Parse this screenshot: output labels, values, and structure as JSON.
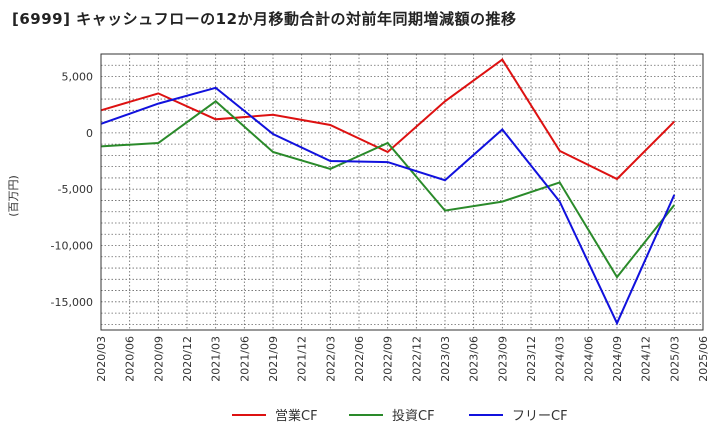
{
  "chart_data": {
    "type": "line",
    "title": "[6999]  キャッシュフローの12か月移動合計の対前年同期増減額の推移",
    "ylabel": "(百万円)",
    "xlabel": "",
    "ylim": [
      -17500,
      7000
    ],
    "yticks": [
      5000,
      0,
      -5000,
      -10000,
      -15000
    ],
    "ytick_labels": [
      "5,000",
      "0",
      "-5,000",
      "-10,000",
      "-15,000"
    ],
    "x_ticks": [
      "2020/03",
      "2020/06",
      "2020/09",
      "2020/12",
      "2021/03",
      "2021/06",
      "2021/09",
      "2021/12",
      "2022/03",
      "2022/06",
      "2022/09",
      "2022/12",
      "2023/03",
      "2023/06",
      "2023/09",
      "2023/12",
      "2024/03",
      "2024/06",
      "2024/09",
      "2024/12",
      "2025/03",
      "2025/06"
    ],
    "x": [
      "2020/03",
      "2020/09",
      "2021/03",
      "2021/09",
      "2022/03",
      "2022/09",
      "2023/03",
      "2023/09",
      "2024/03",
      "2024/09",
      "2025/03"
    ],
    "grid": true,
    "legend_position": "bottom",
    "series": [
      {
        "name": "営業CF",
        "color": "#dd1111",
        "values": [
          2000,
          3500,
          1200,
          1600,
          700,
          -1700,
          2800,
          6500,
          -1600,
          -4100,
          1000
        ]
      },
      {
        "name": "投資CF",
        "color": "#2a8a2a",
        "values": [
          -1200,
          -900,
          2800,
          -1700,
          -3200,
          -900,
          -6900,
          -6100,
          -4400,
          -12800,
          -6400
        ]
      },
      {
        "name": "フリーCF",
        "color": "#1111dd",
        "values": [
          800,
          2600,
          4000,
          -100,
          -2500,
          -2600,
          -4200,
          300,
          -6100,
          -16900,
          -5500
        ]
      }
    ]
  }
}
